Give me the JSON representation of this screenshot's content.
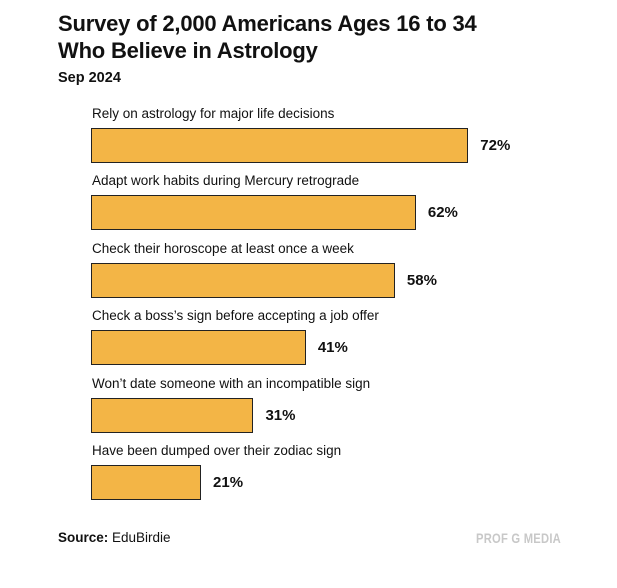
{
  "chart_data": {
    "type": "bar",
    "orientation": "horizontal",
    "title": "Survey of 2,000 Americans Ages 16 to 34 Who Believe in Astrology",
    "title_lines": [
      "Survey of 2,000 Americans Ages 16 to 34",
      "Who Believe in Astrology"
    ],
    "subtitle": "Sep 2024",
    "categories": [
      "Rely on astrology for major life decisions",
      "Adapt work habits during Mercury retrograde",
      "Check their horoscope at least once a week",
      "Check a boss’s sign before accepting a job offer",
      "Won’t date someone with an incompatible sign",
      "Have been dumped over their zodiac sign"
    ],
    "values": [
      72,
      62,
      58,
      41,
      31,
      21
    ],
    "value_labels": [
      "72%",
      "62%",
      "58%",
      "41%",
      "31%",
      "21%"
    ],
    "unit": "%",
    "xlim": [
      0,
      100
    ],
    "grid": false,
    "bar_color": "#f3b546",
    "source_label": "Source:",
    "source": "EduBirdie",
    "brand": "PROF G MEDIA"
  }
}
